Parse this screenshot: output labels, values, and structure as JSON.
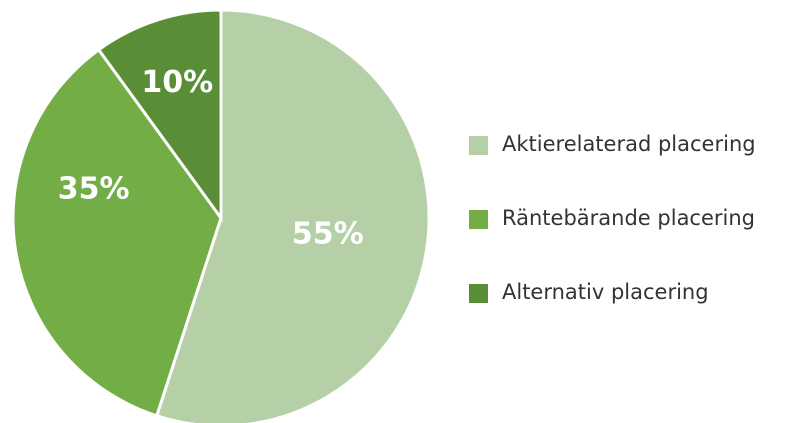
{
  "chart_data": {
    "type": "pie",
    "categories": [
      "Aktierelaterad placering",
      "Räntebärande placering",
      "Alternativ placering"
    ],
    "values": [
      55,
      35,
      10
    ],
    "value_labels": [
      "55%",
      "35%",
      "10%"
    ],
    "colors": [
      "#b5d0a6",
      "#73ad45",
      "#5a8e36"
    ],
    "legend": "right"
  }
}
